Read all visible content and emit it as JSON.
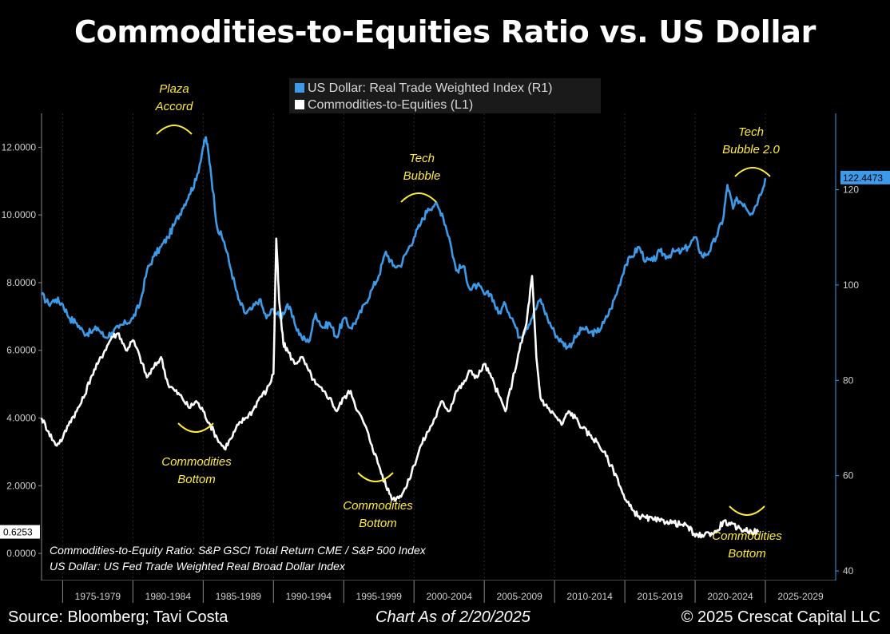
{
  "title": "Commodities-to-Equities Ratio vs. US Dollar",
  "footer": {
    "source": "Source: Bloomberg; Tavi Costa",
    "as_of": "Chart As of 2/20/2025",
    "copyright": "© 2025 Crescat Capital LLC"
  },
  "colors": {
    "usd": "#3d9ae8",
    "ratio": "#ffffff",
    "annotation": "#ffeb3b",
    "background": "#000000",
    "axis": "#9e9e9e"
  },
  "chart_data": {
    "type": "line",
    "legend": [
      {
        "label": "US Dollar: Real Trade Weighted Index (R1)",
        "color": "#3d9ae8"
      },
      {
        "label": "Commodities-to-Equities (L1)",
        "color": "#ffffff"
      }
    ],
    "legend_placement": "top-center",
    "x_ticks": [
      "1975-1979",
      "1980-1984",
      "1985-1989",
      "1990-1994",
      "1995-1999",
      "2000-2004",
      "2005-2009",
      "2010-2014",
      "2015-2019",
      "2020-2024",
      "2025-2029"
    ],
    "xlim": [
      1973.5,
      2030
    ],
    "left_axis": {
      "ticks": [
        "0.0000",
        "2.0000",
        "4.0000",
        "6.0000",
        "8.0000",
        "10.0000",
        "12.0000"
      ],
      "ylim": [
        -0.8,
        13.0
      ]
    },
    "right_axis": {
      "ticks": [
        "40",
        "60",
        "80",
        "100",
        "120"
      ],
      "ylim": [
        38,
        136
      ]
    },
    "last_values": {
      "usd": "122.4473",
      "ratio": "0.6253"
    },
    "series": [
      {
        "name": "US Dollar: Real Trade Weighted Index (R1)",
        "axis": "right",
        "x": [
          1973.5,
          1974.0,
          1974.5,
          1975.0,
          1975.5,
          1976.0,
          1976.5,
          1977.0,
          1977.5,
          1978.0,
          1978.5,
          1979.0,
          1979.5,
          1980.0,
          1980.5,
          1981.0,
          1981.5,
          1982.0,
          1982.5,
          1983.0,
          1983.5,
          1984.0,
          1984.5,
          1985.0,
          1985.2,
          1985.5,
          1986.0,
          1986.5,
          1987.0,
          1987.5,
          1988.0,
          1988.5,
          1989.0,
          1989.5,
          1990.0,
          1990.5,
          1991.0,
          1991.5,
          1992.0,
          1992.5,
          1993.0,
          1993.5,
          1994.0,
          1994.5,
          1995.0,
          1995.5,
          1996.0,
          1996.5,
          1997.0,
          1997.5,
          1998.0,
          1998.5,
          1999.0,
          1999.5,
          2000.0,
          2000.5,
          2001.0,
          2001.5,
          2002.0,
          2002.5,
          2003.0,
          2003.5,
          2004.0,
          2004.5,
          2005.0,
          2005.5,
          2006.0,
          2006.5,
          2007.0,
          2007.5,
          2008.0,
          2008.5,
          2009.0,
          2009.5,
          2010.0,
          2010.5,
          2011.0,
          2011.5,
          2012.0,
          2012.5,
          2013.0,
          2013.5,
          2014.0,
          2014.5,
          2015.0,
          2015.5,
          2016.0,
          2016.5,
          2017.0,
          2017.5,
          2018.0,
          2018.5,
          2019.0,
          2019.5,
          2020.0,
          2020.5,
          2021.0,
          2021.5,
          2022.0,
          2022.3,
          2022.7,
          2023.0,
          2023.5,
          2024.0,
          2024.5,
          2025.0
        ],
        "values": [
          98,
          96,
          97,
          96,
          93,
          92,
          90,
          90,
          91,
          89,
          90,
          91,
          92,
          93,
          96,
          103,
          106,
          108,
          110,
          113,
          116,
          119,
          122,
          129,
          131,
          125,
          112,
          109,
          103,
          97,
          94,
          95,
          97,
          93,
          95,
          93,
          96,
          92,
          89,
          88,
          94,
          91,
          92,
          89,
          93,
          91,
          93,
          96,
          99,
          102,
          107,
          104,
          104,
          107,
          110,
          113,
          116,
          117,
          115,
          110,
          103,
          104,
          99,
          100,
          98,
          98,
          94,
          96,
          93,
          89,
          91,
          94,
          97,
          93,
          90,
          88,
          87,
          89,
          91,
          90,
          90,
          92,
          95,
          99,
          104,
          106,
          108,
          105,
          105,
          107,
          106,
          107,
          107,
          108,
          110,
          106,
          107,
          110,
          114,
          121,
          116,
          118,
          117,
          115,
          118,
          122.4
        ]
      },
      {
        "name": "Commodities-to-Equities (L1)",
        "axis": "left",
        "x": [
          1973.5,
          1974.0,
          1974.5,
          1975.0,
          1975.5,
          1976.0,
          1976.5,
          1977.0,
          1977.5,
          1978.0,
          1978.5,
          1979.0,
          1979.5,
          1980.0,
          1980.5,
          1981.0,
          1981.5,
          1982.0,
          1982.5,
          1983.0,
          1983.5,
          1984.0,
          1984.5,
          1985.0,
          1985.5,
          1986.0,
          1986.5,
          1987.0,
          1987.5,
          1988.0,
          1988.5,
          1989.0,
          1989.5,
          1990.0,
          1990.2,
          1990.4,
          1990.7,
          1991.0,
          1991.5,
          1992.0,
          1992.5,
          1993.0,
          1993.5,
          1994.0,
          1994.5,
          1995.0,
          1995.5,
          1996.0,
          1996.5,
          1997.0,
          1997.5,
          1998.0,
          1998.5,
          1999.0,
          1999.5,
          2000.0,
          2000.5,
          2001.0,
          2001.5,
          2002.0,
          2002.5,
          2003.0,
          2003.5,
          2004.0,
          2004.5,
          2005.0,
          2005.5,
          2006.0,
          2006.5,
          2007.0,
          2007.5,
          2008.0,
          2008.4,
          2008.7,
          2009.0,
          2009.5,
          2010.0,
          2010.5,
          2011.0,
          2011.5,
          2012.0,
          2012.5,
          2013.0,
          2013.5,
          2014.0,
          2014.5,
          2015.0,
          2015.5,
          2016.0,
          2016.5,
          2017.0,
          2017.5,
          2018.0,
          2018.5,
          2019.0,
          2019.5,
          2020.0,
          2020.5,
          2021.0,
          2021.5,
          2022.0,
          2022.5,
          2023.0,
          2023.5,
          2024.0,
          2024.5
        ],
        "values": [
          4.0,
          3.6,
          3.2,
          3.4,
          3.9,
          4.2,
          4.6,
          5.2,
          5.6,
          6.0,
          6.4,
          6.5,
          6.0,
          6.3,
          5.8,
          5.2,
          5.5,
          5.8,
          5.0,
          4.8,
          4.6,
          4.3,
          4.5,
          4.2,
          3.8,
          3.4,
          3.1,
          3.4,
          3.8,
          4.0,
          4.2,
          4.6,
          4.8,
          5.3,
          9.3,
          7.5,
          6.2,
          6.0,
          5.6,
          5.8,
          5.4,
          5.0,
          4.8,
          4.6,
          4.2,
          4.6,
          4.8,
          4.2,
          3.8,
          3.2,
          2.6,
          2.0,
          1.6,
          1.7,
          2.0,
          2.6,
          3.2,
          3.6,
          4.0,
          4.5,
          4.2,
          4.8,
          5.0,
          5.4,
          5.2,
          5.6,
          5.2,
          4.7,
          4.2,
          5.1,
          6.0,
          6.8,
          8.2,
          5.8,
          4.6,
          4.3,
          4.1,
          3.8,
          4.2,
          4.0,
          3.7,
          3.5,
          3.3,
          3.0,
          2.6,
          2.2,
          1.6,
          1.3,
          1.1,
          1.05,
          1.0,
          0.95,
          0.95,
          0.9,
          0.85,
          0.8,
          0.5,
          0.55,
          0.6,
          0.62,
          0.95,
          0.85,
          0.75,
          0.7,
          0.65,
          0.63
        ]
      }
    ],
    "annotations": [
      {
        "text": [
          "Plaza",
          "Accord"
        ],
        "at": [
          1985.2,
          "top"
        ]
      },
      {
        "text": [
          "Tech",
          "Bubble"
        ],
        "at": [
          2000.5,
          "top"
        ]
      },
      {
        "text": [
          "Tech",
          "Bubble 2.0"
        ],
        "at": [
          2024.8,
          "top"
        ]
      },
      {
        "text": [
          "Commodities",
          "Bottom"
        ],
        "at": [
          1986.5,
          "bottom"
        ]
      },
      {
        "text": [
          "Commodities",
          "Bottom"
        ],
        "at": [
          1998.8,
          "bottom"
        ]
      },
      {
        "text": [
          "Commodities",
          "Bottom"
        ],
        "at": [
          2025.2,
          "bottom"
        ]
      }
    ],
    "notes": [
      "Commodities-to-Equity Ratio: S&P GSCI Total Return CME / S&P 500 Index",
      "US Dollar: US Fed Trade Weighted Real Broad Dollar Index"
    ]
  }
}
